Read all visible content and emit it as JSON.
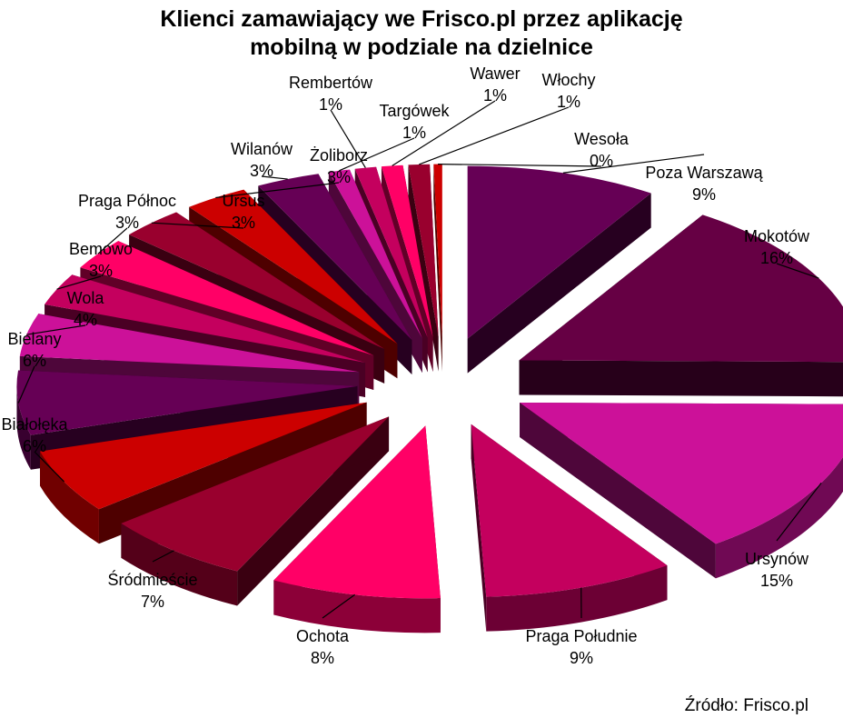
{
  "chart_data": {
    "type": "pie",
    "title_line1": "Klienci zamawiający we Frisco.pl przez aplikację",
    "title_line2": "mobilną w podziale na dzielnice",
    "source": "Źródło: Frisco.pl",
    "slices": [
      {
        "label": "Poza Warszawą",
        "value_label": "9%",
        "value": 9,
        "color": "#660055"
      },
      {
        "label": "Mokotów",
        "value_label": "16%",
        "value": 16,
        "color": "#660044"
      },
      {
        "label": "Ursynów",
        "value_label": "15%",
        "value": 15,
        "color": "#cc1199"
      },
      {
        "label": "Praga Południe",
        "value_label": "9%",
        "value": 9,
        "color": "#c4005e"
      },
      {
        "label": "Ochota",
        "value_label": "8%",
        "value": 8,
        "color": "#ff0066"
      },
      {
        "label": "Śródmieście",
        "value_label": "7%",
        "value": 7,
        "color": "#99002e"
      },
      {
        "label": "Białołęka",
        "value_label": "6%",
        "value": 6,
        "color": "#cc0000"
      },
      {
        "label": "Bielany",
        "value_label": "6%",
        "value": 6,
        "color": "#660055"
      },
      {
        "label": "Wola",
        "value_label": "4%",
        "value": 4,
        "color": "#cc1199"
      },
      {
        "label": "Bemowo",
        "value_label": "3%",
        "value": 3,
        "color": "#c4005e"
      },
      {
        "label": "Praga Północ",
        "value_label": "3%",
        "value": 3,
        "color": "#ff0066"
      },
      {
        "label": "Ursus",
        "value_label": "3%",
        "value": 3,
        "color": "#99002e"
      },
      {
        "label": "Żoliborz",
        "value_label": "3%",
        "value": 3,
        "color": "#cc0000"
      },
      {
        "label": "Wilanów",
        "value_label": "3%",
        "value": 3,
        "color": "#660055"
      },
      {
        "label": "Targówek",
        "value_label": "1%",
        "value": 1,
        "color": "#cc1199"
      },
      {
        "label": "Rembertów",
        "value_label": "1%",
        "value": 1,
        "color": "#c4005e"
      },
      {
        "label": "Wawer",
        "value_label": "1%",
        "value": 1,
        "color": "#ff0066"
      },
      {
        "label": "Włochy",
        "value_label": "1%",
        "value": 1,
        "color": "#99002e"
      },
      {
        "label": "Wesoła",
        "value_label": "0%",
        "value": 0.4,
        "color": "#cc0000"
      }
    ]
  }
}
